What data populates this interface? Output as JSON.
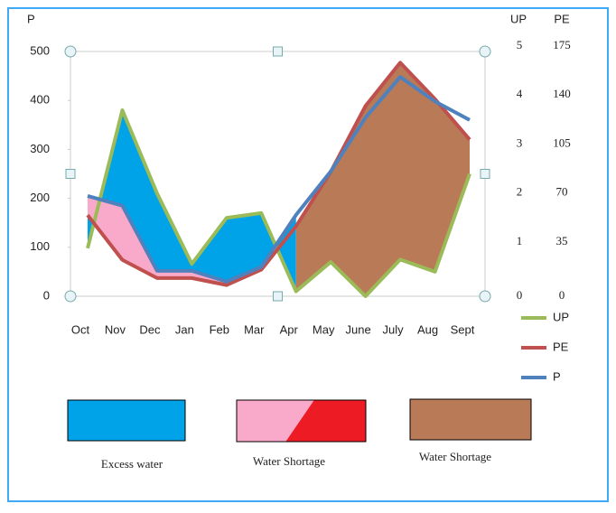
{
  "chart_data": {
    "type": "line",
    "categories": [
      "Oct",
      "Nov",
      "Dec",
      "Jan",
      "Feb",
      "Mar",
      "Apr",
      "May",
      "June",
      "July",
      "Aug",
      "Sept"
    ],
    "ylabel": "P",
    "y2label": "UP",
    "y3label": "PE",
    "ylim": [
      0,
      500
    ],
    "yticks": [
      0,
      100,
      200,
      300,
      400,
      500
    ],
    "y2lim": [
      0,
      5
    ],
    "y2ticks": [
      0,
      1,
      2,
      3,
      4,
      5
    ],
    "y3lim": [
      0,
      175
    ],
    "y3ticks": [
      0,
      35,
      70,
      105,
      140,
      175
    ],
    "series": [
      {
        "name": "UP",
        "color": "#9bbb59",
        "axis": "y2",
        "values": [
          0.98,
          3.8,
          2.1,
          0.66,
          1.6,
          1.7,
          0.1,
          0.7,
          0,
          0.75,
          0.5,
          2.5
        ]
      },
      {
        "name": "PE",
        "color": "#c0504d",
        "axis": "y3",
        "values": [
          58,
          26,
          13,
          13,
          8,
          19,
          50,
          89,
          136,
          167,
          141,
          112
        ]
      },
      {
        "name": "P",
        "color": "#4f81bd",
        "axis": "y",
        "values": [
          205,
          185,
          52,
          52,
          30,
          60,
          166,
          255,
          365,
          448,
          398,
          360
        ]
      }
    ],
    "fill_legend": [
      {
        "label": "Excess water",
        "color": "#00a2e8"
      },
      {
        "label": "Water Shortage",
        "color": "#f9a9c9",
        "color2": "#ed1c24"
      },
      {
        "label": "Water Shortage",
        "color": "#b97a57"
      }
    ]
  }
}
